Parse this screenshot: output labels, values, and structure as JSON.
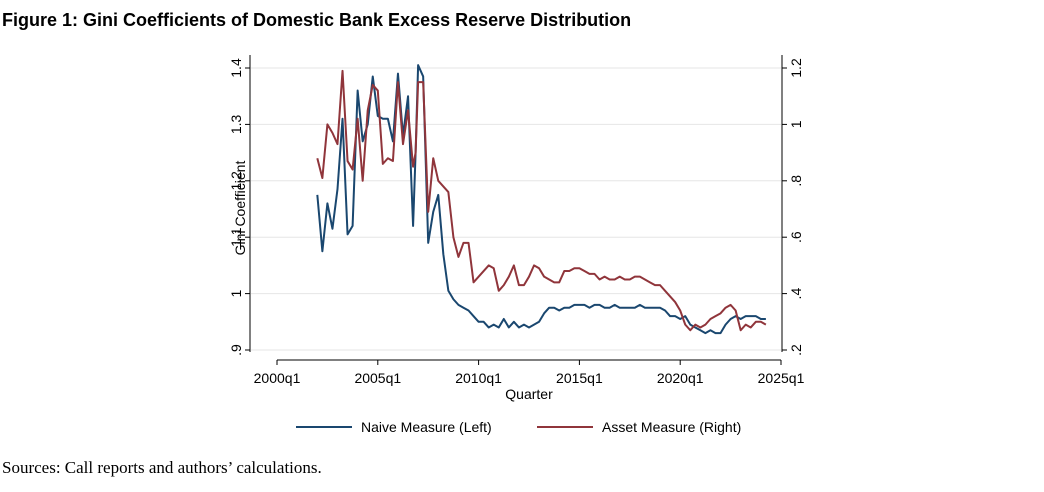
{
  "figure": {
    "title": "Figure 1: Gini Coefficients of Domestic Bank Excess Reserve Distribution",
    "sources": "Sources: Call reports and authors’ calculations."
  },
  "chart_data": {
    "type": "line",
    "xlabel": "Quarter",
    "ylabel_left": "Gini Coefficient",
    "ylabel_right": "",
    "x_ticks": [
      {
        "value": 2000.0,
        "label": "2000q1"
      },
      {
        "value": 2005.0,
        "label": "2005q1"
      },
      {
        "value": 2010.0,
        "label": "2010q1"
      },
      {
        "value": 2015.0,
        "label": "2015q1"
      },
      {
        "value": 2020.0,
        "label": "2020q1"
      },
      {
        "value": 2025.0,
        "label": "2025q1"
      }
    ],
    "xlim": [
      2000.0,
      2025.0
    ],
    "y_left_ticks": [
      {
        "value": 0.9,
        "label": ".9"
      },
      {
        "value": 1.0,
        "label": "1"
      },
      {
        "value": 1.1,
        "label": "1.1"
      },
      {
        "value": 1.2,
        "label": "1.2"
      },
      {
        "value": 1.3,
        "label": "1.3"
      },
      {
        "value": 1.4,
        "label": "1.4"
      }
    ],
    "y_left_lim": [
      0.9,
      1.4
    ],
    "y_right_ticks": [
      {
        "value": 0.2,
        "label": ".2"
      },
      {
        "value": 0.4,
        "label": ".4"
      },
      {
        "value": 0.6,
        "label": ".6"
      },
      {
        "value": 0.8,
        "label": ".8"
      },
      {
        "value": 1.0,
        "label": "1"
      },
      {
        "value": 1.2,
        "label": "1.2"
      }
    ],
    "y_right_lim": [
      0.2,
      1.2
    ],
    "legend_position": "bottom",
    "series": [
      {
        "name": "Naive Measure (Left)",
        "axis": "left",
        "color": "#1a476f",
        "x": [
          2002.0,
          2002.25,
          2002.5,
          2002.75,
          2003.0,
          2003.25,
          2003.5,
          2003.75,
          2004.0,
          2004.25,
          2004.5,
          2004.75,
          2005.0,
          2005.25,
          2005.5,
          2005.75,
          2006.0,
          2006.25,
          2006.5,
          2006.75,
          2006.875,
          2007.0,
          2007.25,
          2007.5,
          2007.75,
          2008.0,
          2008.25,
          2008.5,
          2008.75,
          2009.0,
          2009.25,
          2009.5,
          2009.75,
          2010.0,
          2010.25,
          2010.5,
          2010.75,
          2011.0,
          2011.25,
          2011.5,
          2011.75,
          2012.0,
          2012.25,
          2012.5,
          2012.75,
          2013.0,
          2013.25,
          2013.5,
          2013.75,
          2014.0,
          2014.25,
          2014.5,
          2014.75,
          2015.0,
          2015.25,
          2015.5,
          2015.75,
          2016.0,
          2016.25,
          2016.5,
          2016.75,
          2017.0,
          2017.25,
          2017.5,
          2017.75,
          2018.0,
          2018.25,
          2018.5,
          2018.75,
          2019.0,
          2019.25,
          2019.5,
          2019.75,
          2020.0,
          2020.25,
          2020.5,
          2020.75,
          2021.0,
          2021.25,
          2021.5,
          2021.75,
          2022.0,
          2022.25,
          2022.5,
          2022.75,
          2023.0,
          2023.25,
          2023.5,
          2023.75,
          2024.0,
          2024.25
        ],
        "values": [
          1.175,
          1.075,
          1.16,
          1.115,
          1.185,
          1.31,
          1.105,
          1.12,
          1.36,
          1.27,
          1.3,
          1.385,
          1.315,
          1.31,
          1.31,
          1.27,
          1.39,
          1.28,
          1.35,
          1.12,
          1.25,
          1.405,
          1.385,
          1.09,
          1.145,
          1.175,
          1.07,
          1.005,
          0.99,
          0.98,
          0.975,
          0.97,
          0.96,
          0.95,
          0.95,
          0.94,
          0.945,
          0.94,
          0.955,
          0.94,
          0.95,
          0.94,
          0.945,
          0.94,
          0.945,
          0.95,
          0.965,
          0.975,
          0.975,
          0.97,
          0.975,
          0.975,
          0.98,
          0.98,
          0.98,
          0.975,
          0.98,
          0.98,
          0.975,
          0.975,
          0.98,
          0.975,
          0.975,
          0.975,
          0.975,
          0.98,
          0.975,
          0.975,
          0.975,
          0.975,
          0.97,
          0.96,
          0.96,
          0.955,
          0.96,
          0.945,
          0.94,
          0.935,
          0.93,
          0.935,
          0.93,
          0.93,
          0.945,
          0.955,
          0.96,
          0.955,
          0.96,
          0.96,
          0.96,
          0.955,
          0.955
        ]
      },
      {
        "name": "Asset Measure (Right)",
        "axis": "right",
        "color": "#90353b",
        "x": [
          2002.0,
          2002.25,
          2002.5,
          2002.75,
          2003.0,
          2003.25,
          2003.5,
          2003.75,
          2004.0,
          2004.25,
          2004.5,
          2004.75,
          2005.0,
          2005.25,
          2005.5,
          2005.75,
          2006.0,
          2006.25,
          2006.5,
          2006.75,
          2006.875,
          2007.0,
          2007.25,
          2007.5,
          2007.75,
          2008.0,
          2008.25,
          2008.5,
          2008.75,
          2009.0,
          2009.25,
          2009.5,
          2009.75,
          2010.0,
          2010.25,
          2010.5,
          2010.75,
          2011.0,
          2011.25,
          2011.5,
          2011.75,
          2012.0,
          2012.25,
          2012.5,
          2012.75,
          2013.0,
          2013.25,
          2013.5,
          2013.75,
          2014.0,
          2014.25,
          2014.5,
          2014.75,
          2015.0,
          2015.25,
          2015.5,
          2015.75,
          2016.0,
          2016.25,
          2016.5,
          2016.75,
          2017.0,
          2017.25,
          2017.5,
          2017.75,
          2018.0,
          2018.25,
          2018.5,
          2018.75,
          2019.0,
          2019.25,
          2019.5,
          2019.75,
          2020.0,
          2020.25,
          2020.5,
          2020.75,
          2021.0,
          2021.25,
          2021.5,
          2021.75,
          2022.0,
          2022.25,
          2022.5,
          2022.75,
          2023.0,
          2023.25,
          2023.5,
          2023.75,
          2024.0,
          2024.25
        ],
        "values": [
          0.88,
          0.81,
          1.0,
          0.97,
          0.93,
          1.19,
          0.87,
          0.84,
          1.02,
          0.8,
          1.05,
          1.14,
          1.12,
          0.86,
          0.88,
          0.87,
          1.15,
          0.93,
          1.05,
          0.85,
          0.9,
          1.15,
          1.15,
          0.69,
          0.88,
          0.8,
          0.78,
          0.76,
          0.6,
          0.53,
          0.58,
          0.58,
          0.44,
          0.46,
          0.48,
          0.5,
          0.49,
          0.41,
          0.43,
          0.46,
          0.5,
          0.43,
          0.43,
          0.46,
          0.5,
          0.49,
          0.46,
          0.45,
          0.44,
          0.44,
          0.48,
          0.48,
          0.49,
          0.49,
          0.48,
          0.47,
          0.47,
          0.45,
          0.46,
          0.45,
          0.45,
          0.46,
          0.45,
          0.45,
          0.46,
          0.46,
          0.45,
          0.44,
          0.43,
          0.43,
          0.41,
          0.39,
          0.37,
          0.34,
          0.29,
          0.27,
          0.29,
          0.28,
          0.29,
          0.31,
          0.32,
          0.33,
          0.35,
          0.36,
          0.34,
          0.27,
          0.29,
          0.28,
          0.3,
          0.3,
          0.29
        ]
      }
    ]
  }
}
